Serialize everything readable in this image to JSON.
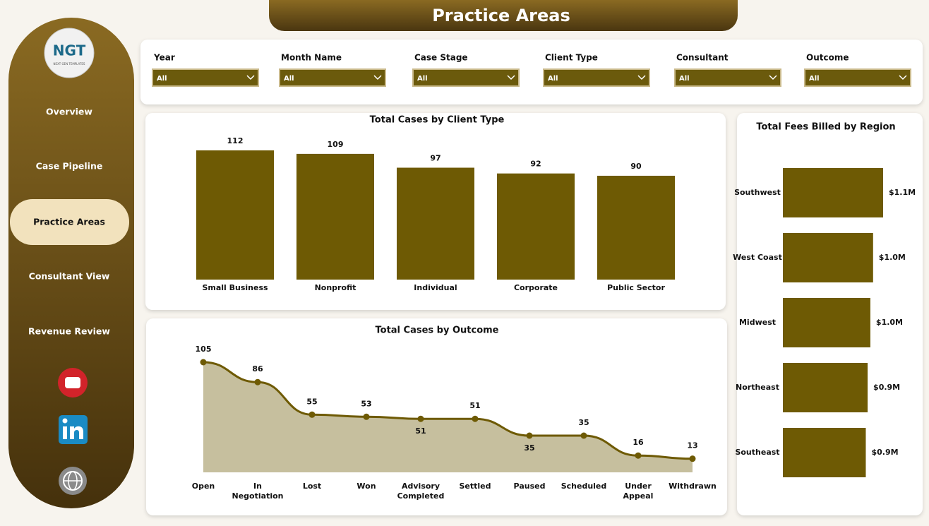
{
  "header": {
    "title": "Practice Areas"
  },
  "logo": {
    "text": "NGT",
    "subtitle": "NEXT GEN TEMPLATES"
  },
  "nav": [
    "Overview",
    "Case Pipeline",
    "Practice Areas",
    "Consultant View",
    "Revenue Review"
  ],
  "filters": [
    {
      "label": "Year",
      "value": "All"
    },
    {
      "label": "Month Name",
      "value": "All"
    },
    {
      "label": "Case Stage",
      "value": "All"
    },
    {
      "label": "Client Type",
      "value": "All"
    },
    {
      "label": "Consultant",
      "value": "All"
    },
    {
      "label": "Outcome",
      "value": "All"
    }
  ],
  "chart_data": [
    {
      "type": "bar",
      "title": "Total Cases by Client Type",
      "color": "#6e5a04",
      "categories": [
        "Small Business",
        "Nonprofit",
        "Individual",
        "Corporate",
        "Public Sector"
      ],
      "values": [
        112,
        109,
        97,
        92,
        90
      ]
    },
    {
      "type": "area",
      "title": "Total Cases by Outcome",
      "color": "#6e5a04",
      "fill": "#c6bf9e",
      "categories": [
        "Open",
        "In Negotiation",
        "Lost",
        "Won",
        "Advisory Completed",
        "Settled",
        "Paused",
        "Scheduled",
        "Under Appeal",
        "Withdrawn"
      ],
      "values": [
        105,
        86,
        55,
        53,
        51,
        51,
        35,
        35,
        16,
        13
      ]
    },
    {
      "type": "bar",
      "orientation": "horizontal",
      "title": "Total Fees Billed by Region",
      "color": "#6e5a04",
      "categories": [
        "Southwest",
        "West Coast",
        "Midwest",
        "Northeast",
        "Southeast"
      ],
      "values": [
        1100000,
        990000,
        960000,
        930000,
        910000
      ],
      "value_labels": [
        "$1.1M",
        "$1.0M",
        "$1.0M",
        "$0.9M",
        "$0.9M"
      ]
    }
  ]
}
